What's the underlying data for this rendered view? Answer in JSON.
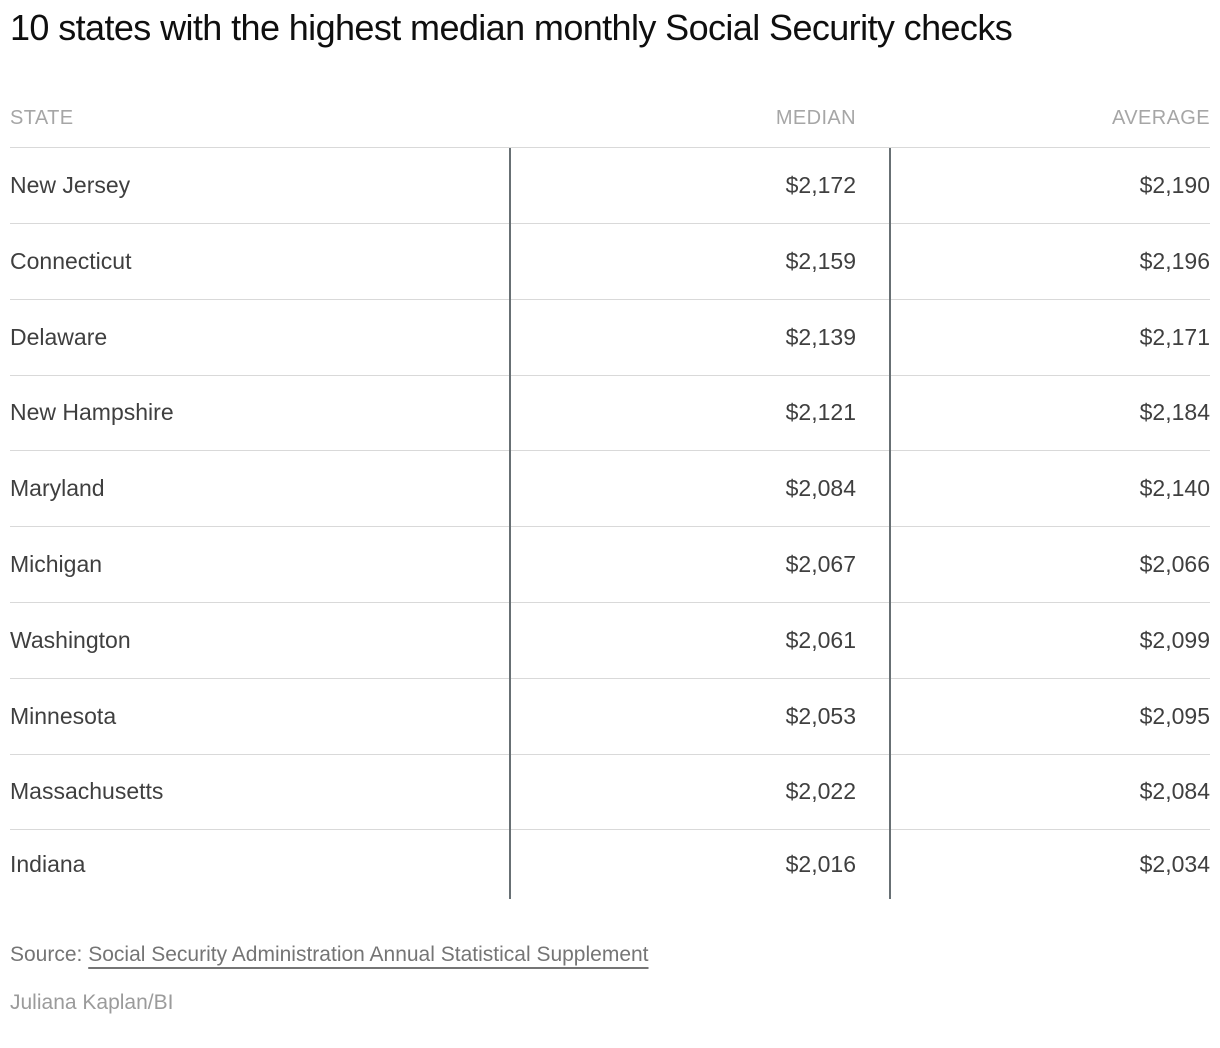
{
  "title": "10 states with the highest median monthly Social Security checks",
  "table": {
    "columns": {
      "state": "STATE",
      "median": "MEDIAN",
      "average": "AVERAGE"
    },
    "rows": [
      {
        "state": "New Jersey",
        "median": "$2,172",
        "average": "$2,190"
      },
      {
        "state": "Connecticut",
        "median": "$2,159",
        "average": "$2,196"
      },
      {
        "state": "Delaware",
        "median": "$2,139",
        "average": "$2,171"
      },
      {
        "state": "New Hampshire",
        "median": "$2,121",
        "average": "$2,184"
      },
      {
        "state": "Maryland",
        "median": "$2,084",
        "average": "$2,140"
      },
      {
        "state": "Michigan",
        "median": "$2,067",
        "average": "$2,066"
      },
      {
        "state": "Washington",
        "median": "$2,061",
        "average": "$2,099"
      },
      {
        "state": "Minnesota",
        "median": "$2,053",
        "average": "$2,095"
      },
      {
        "state": "Massachusetts",
        "median": "$2,022",
        "average": "$2,084"
      },
      {
        "state": "Indiana",
        "median": "$2,016",
        "average": "$2,034"
      }
    ]
  },
  "footer": {
    "source_label": "Source:",
    "source_link_text": "Social Security Administration Annual Statistical Supplement",
    "byline": "Juliana Kaplan/BI"
  },
  "colors": {
    "title_text": "#0f0f0f",
    "header_text": "#a6a6a6",
    "body_text": "#3f3f3f",
    "rule_horizontal": "#d9d9d9",
    "rule_vertical": "#687074",
    "source_text": "#757575",
    "byline_text": "#9b9b9b",
    "background": "#ffffff"
  },
  "chart_data": {
    "type": "table",
    "title": "10 states with the highest median monthly Social Security checks",
    "columns": [
      "STATE",
      "MEDIAN",
      "AVERAGE"
    ],
    "unit": "USD per month",
    "rows": [
      [
        "New Jersey",
        2172,
        2190
      ],
      [
        "Connecticut",
        2159,
        2196
      ],
      [
        "Delaware",
        2139,
        2171
      ],
      [
        "New Hampshire",
        2121,
        2184
      ],
      [
        "Maryland",
        2084,
        2140
      ],
      [
        "Michigan",
        2067,
        2066
      ],
      [
        "Washington",
        2061,
        2099
      ],
      [
        "Minnesota",
        2053,
        2095
      ],
      [
        "Massachusetts",
        2022,
        2084
      ],
      [
        "Indiana",
        2016,
        2034
      ]
    ],
    "source": "Social Security Administration Annual Statistical Supplement",
    "byline": "Juliana Kaplan/BI",
    "layout": {
      "value_columns_right_aligned": true,
      "grid": "horizontal rules + two vertical column separators"
    }
  }
}
